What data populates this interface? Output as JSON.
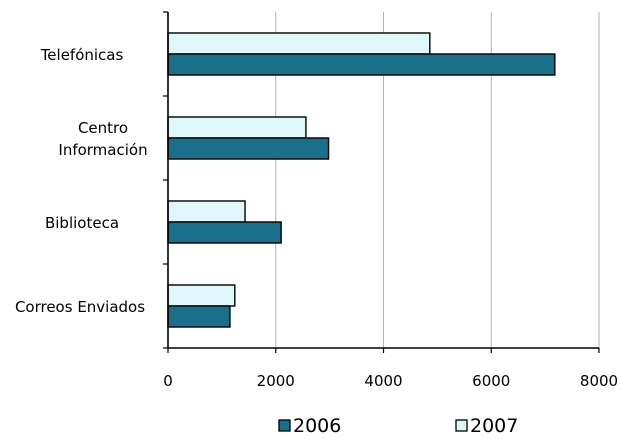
{
  "chart_data": {
    "type": "bar",
    "orientation": "horizontal",
    "categories": [
      [
        "Telefónicas"
      ],
      [
        "Centro",
        "Información"
      ],
      [
        "Biblioteca"
      ],
      [
        "Correos Enviados"
      ]
    ],
    "series": [
      {
        "name": "2006",
        "color": "#1a6f8a",
        "values": [
          7180,
          2980,
          2100,
          1150
        ]
      },
      {
        "name": "2007",
        "color": "#dff7fa",
        "values": [
          4860,
          2560,
          1430,
          1240
        ]
      }
    ],
    "xlim": [
      0,
      8000
    ],
    "xticks": [
      "0",
      "2000",
      "4000",
      "6000",
      "8000"
    ],
    "grid": true,
    "legend_position": "bottom"
  }
}
